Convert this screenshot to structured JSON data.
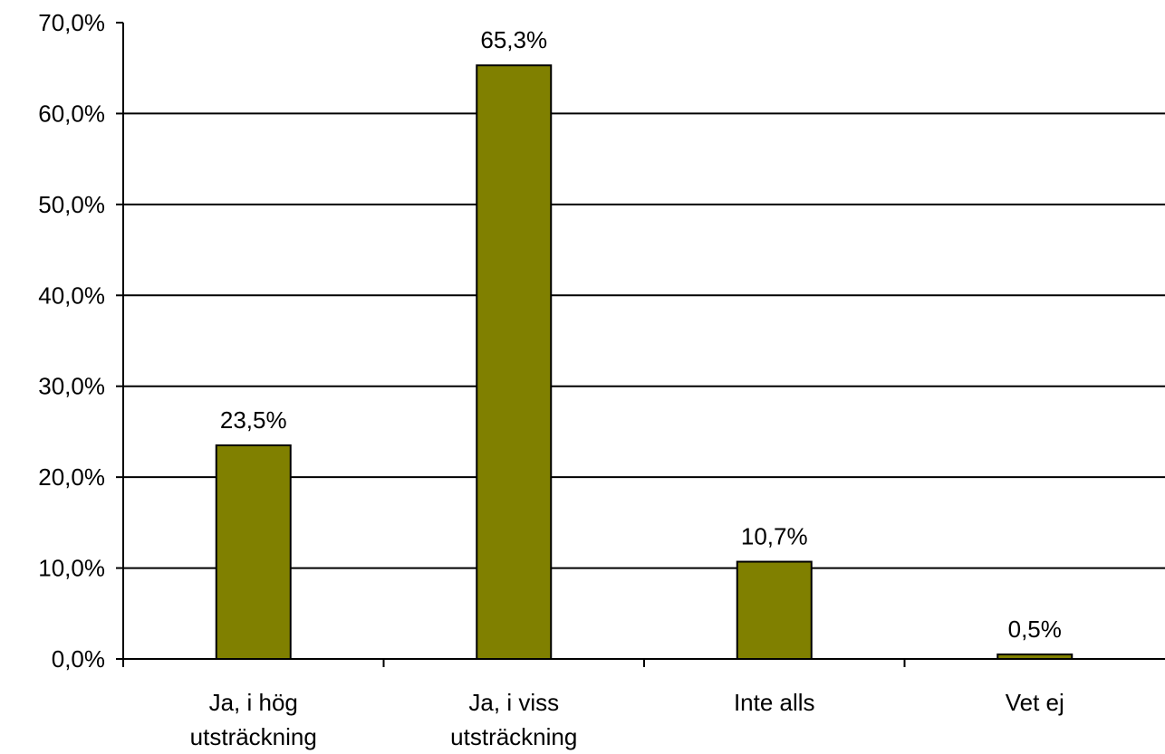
{
  "chart_data": {
    "type": "bar",
    "categories": [
      [
        "Ja, i hög",
        "utsträckning"
      ],
      [
        "Ja, i viss",
        "utsträckning"
      ],
      [
        "Inte alls"
      ],
      [
        "Vet ej"
      ]
    ],
    "values": [
      23.5,
      65.3,
      10.7,
      0.5
    ],
    "data_labels": [
      "23,5%",
      "65,3%",
      "10,7%",
      "0,5%"
    ],
    "ylim": [
      0,
      70
    ],
    "yticks": [
      0,
      10,
      20,
      30,
      40,
      50,
      60,
      70
    ],
    "ytick_labels": [
      "0,0%",
      "10,0%",
      "20,0%",
      "30,0%",
      "40,0%",
      "50,0%",
      "60,0%",
      "70,0%"
    ],
    "grid": true,
    "legend": "none",
    "colors": {
      "bar_fill": "#808000",
      "bar_stroke": "#000000",
      "grid": "#000000",
      "axis": "#000000"
    }
  }
}
